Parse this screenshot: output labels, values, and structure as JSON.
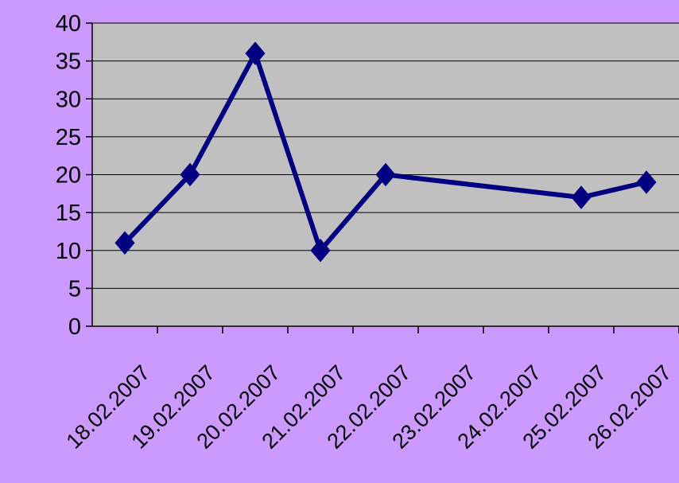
{
  "chart_data": {
    "type": "line",
    "categories": [
      "18.02.2007",
      "19.02.2007",
      "20.02.2007",
      "21.02.2007",
      "22.02.2007",
      "23.02.2007",
      "24.02.2007",
      "25.02.2007",
      "26.02.2007"
    ],
    "series": [
      {
        "points": [
          {
            "x": "18.02.2007",
            "y": 11
          },
          {
            "x": "19.02.2007",
            "y": 20
          },
          {
            "x": "20.02.2007",
            "y": 36
          },
          {
            "x": "21.02.2007",
            "y": 10
          },
          {
            "x": "22.02.2007",
            "y": 20
          },
          {
            "x": "25.02.2007",
            "y": 17
          },
          {
            "x": "26.02.2007",
            "y": 19
          }
        ]
      }
    ],
    "ylim": [
      0,
      40
    ],
    "yticks": [
      0,
      5,
      10,
      15,
      20,
      25,
      30,
      35,
      40
    ],
    "grid": true,
    "title": "",
    "xlabel": "",
    "ylabel": ""
  },
  "colors": {
    "background": "#cc99ff",
    "plot_area": "#c0c0c0",
    "series": "#000080",
    "gridline": "#000000"
  }
}
